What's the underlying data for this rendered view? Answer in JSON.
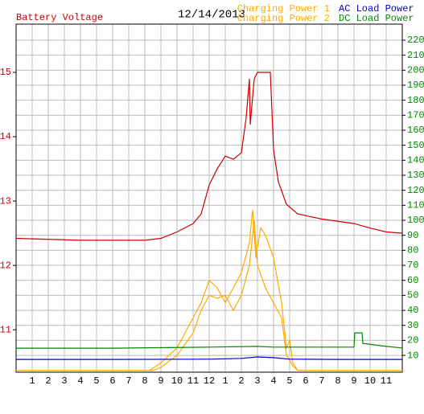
{
  "chart_data": {
    "type": "line",
    "title": "12/14/2013",
    "xlim": [
      0,
      24
    ],
    "xticks": [
      1,
      2,
      3,
      4,
      5,
      6,
      7,
      8,
      9,
      10,
      11,
      12,
      {
        "value": 13,
        "label": "1"
      },
      {
        "value": 14,
        "label": "2"
      },
      {
        "value": 15,
        "label": "3"
      },
      {
        "value": 16,
        "label": "4"
      },
      {
        "value": 17,
        "label": "5"
      },
      {
        "value": 18,
        "label": "6"
      },
      {
        "value": 19,
        "label": "7"
      },
      {
        "value": 20,
        "label": "8"
      },
      {
        "value": 21,
        "label": "9"
      },
      {
        "value": 22,
        "label": "10"
      },
      {
        "value": 23,
        "label": "11"
      }
    ],
    "ylim": [
      10.34,
      15.75
    ],
    "yticks": [
      11,
      12,
      13,
      14,
      15
    ],
    "y2lim": [
      -1.2,
      230.7
    ],
    "y2ticks": [
      10,
      20,
      30,
      40,
      50,
      60,
      70,
      80,
      90,
      100,
      110,
      120,
      130,
      140,
      150,
      160,
      170,
      180,
      190,
      200,
      210,
      220
    ],
    "grid": true,
    "series": [
      {
        "name": "Battery Voltage",
        "color": "#cc0000",
        "axis": "y",
        "x": [
          0,
          4,
          8,
          9,
          10,
          11,
          11.5,
          12,
          12.5,
          13,
          13.5,
          14,
          14.3,
          14.5,
          14.55,
          14.8,
          15,
          15.8,
          16,
          16.3,
          16.8,
          17.5,
          19,
          21,
          22,
          23,
          24
        ],
        "values": [
          12.42,
          12.39,
          12.39,
          12.42,
          12.52,
          12.65,
          12.8,
          13.25,
          13.5,
          13.7,
          13.65,
          13.75,
          14.3,
          14.9,
          14.19,
          14.9,
          15.0,
          15.0,
          13.8,
          13.3,
          12.95,
          12.8,
          12.72,
          12.65,
          12.58,
          12.52,
          12.5
        ]
      },
      {
        "name": "Charging Power 1",
        "color": "#ffaa00",
        "axis": "y2",
        "x": [
          0,
          8.3,
          9,
          10,
          11,
          11.5,
          12,
          12.5,
          13,
          13.5,
          14,
          14.5,
          14.7,
          14.9,
          15.2,
          15.5,
          16,
          16.5,
          16.8,
          17,
          17.2,
          17.5,
          24
        ],
        "values": [
          0,
          0,
          5,
          15,
          35,
          45,
          60,
          55,
          45,
          55,
          65,
          85,
          107,
          75,
          95,
          90,
          75,
          45,
          15,
          20,
          5,
          0,
          0
        ]
      },
      {
        "name": "Charging Power 2",
        "color": "#ffaa00",
        "axis": "y2",
        "x": [
          0,
          8.5,
          9,
          10,
          11,
          11.5,
          12,
          12.5,
          13,
          13.5,
          14,
          14.5,
          14.8,
          15,
          15.5,
          16,
          16.5,
          16.8,
          17.2,
          17.5,
          24
        ],
        "values": [
          0,
          0,
          2,
          10,
          25,
          40,
          50,
          48,
          50,
          40,
          50,
          70,
          100,
          70,
          55,
          45,
          35,
          10,
          3,
          0,
          0
        ]
      },
      {
        "name": "AC Load Power",
        "color": "#0000cc",
        "axis": "y2",
        "x": [
          0,
          6,
          12,
          14,
          15,
          16,
          17,
          20,
          24
        ],
        "values": [
          7.3,
          7.3,
          7.5,
          8,
          9,
          8.5,
          7.5,
          7.3,
          7.3
        ]
      },
      {
        "name": "DC Load Power",
        "color": "#008800",
        "axis": "y2",
        "x": [
          0,
          6,
          12,
          15,
          16,
          17.5,
          21,
          21.05,
          21.5,
          21.55,
          23,
          24
        ],
        "values": [
          14.8,
          14.8,
          15.5,
          16,
          15.5,
          15.5,
          15.5,
          25,
          25,
          18,
          16,
          15
        ]
      }
    ]
  }
}
